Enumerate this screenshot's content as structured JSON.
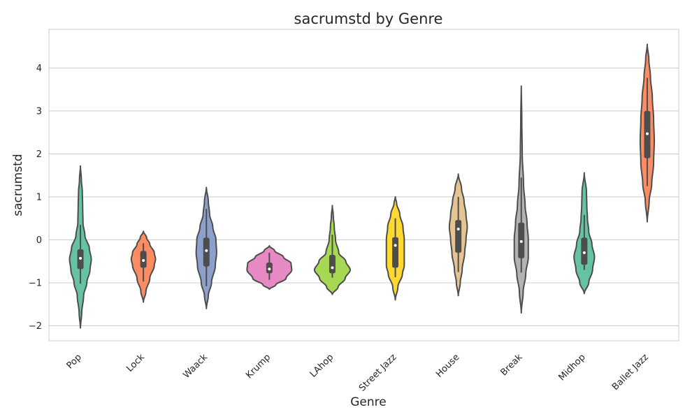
{
  "chart_data": {
    "type": "violin",
    "title": "sacrumstd by Genre",
    "xlabel": "Genre",
    "ylabel": "sacrumstd",
    "ylim": [
      -2.35,
      4.9
    ],
    "yticks": [
      -2,
      -1,
      0,
      1,
      2,
      3,
      4
    ],
    "ytick_labels": [
      "−2",
      "−1",
      "0",
      "1",
      "2",
      "3",
      "4"
    ],
    "grid": true,
    "categories": [
      "Pop",
      "Lock",
      "Waack",
      "Krump",
      "LAhop",
      "Street Jazz",
      "House",
      "Break",
      "Midhop",
      "Ballet Jazz"
    ],
    "colors": [
      "#66c2a5",
      "#fc8d62",
      "#8da0cb",
      "#e78ac3",
      "#a6d854",
      "#ffd92f",
      "#e5c494",
      "#b3b3b3",
      "#66c2a5",
      "#fc8d62"
    ],
    "series": [
      {
        "category": "Pop",
        "min": -2.05,
        "max": 1.72,
        "whisker_low": -1.02,
        "q1": -0.68,
        "median": -0.43,
        "q3": -0.22,
        "whisker_high": 0.35,
        "profile": [
          [
            -2.05,
            0
          ],
          [
            -1.7,
            0.02
          ],
          [
            -1.3,
            0.05
          ],
          [
            -1.0,
            0.1
          ],
          [
            -0.7,
            0.15
          ],
          [
            -0.45,
            0.17
          ],
          [
            -0.2,
            0.14
          ],
          [
            0.1,
            0.07
          ],
          [
            0.4,
            0.04
          ],
          [
            0.8,
            0.035
          ],
          [
            1.1,
            0.03
          ],
          [
            1.4,
            0.015
          ],
          [
            1.72,
            0
          ]
        ]
      },
      {
        "category": "Lock",
        "min": -1.45,
        "max": 0.2,
        "whisker_low": -0.97,
        "q1": -0.65,
        "median": -0.48,
        "q3": -0.26,
        "whisker_high": -0.08,
        "profile": [
          [
            -1.45,
            0
          ],
          [
            -1.2,
            0.04
          ],
          [
            -0.9,
            0.1
          ],
          [
            -0.6,
            0.17
          ],
          [
            -0.45,
            0.19
          ],
          [
            -0.3,
            0.17
          ],
          [
            -0.1,
            0.1
          ],
          [
            0.05,
            0.05
          ],
          [
            0.2,
            0
          ]
        ]
      },
      {
        "category": "Waack",
        "min": -1.6,
        "max": 1.22,
        "whisker_low": -1.08,
        "q1": -0.62,
        "median": -0.25,
        "q3": 0.05,
        "whisker_high": 0.72,
        "profile": [
          [
            -1.6,
            0
          ],
          [
            -1.3,
            0.03
          ],
          [
            -1.0,
            0.08
          ],
          [
            -0.6,
            0.14
          ],
          [
            -0.3,
            0.16
          ],
          [
            0.0,
            0.15
          ],
          [
            0.3,
            0.1
          ],
          [
            0.6,
            0.05
          ],
          [
            0.9,
            0.03
          ],
          [
            1.22,
            0
          ]
        ]
      },
      {
        "category": "Krump",
        "min": -1.15,
        "max": -0.14,
        "whisker_low": -0.93,
        "q1": -0.78,
        "median": -0.68,
        "q3": -0.53,
        "whisker_high": -0.3,
        "profile": [
          [
            -1.15,
            0
          ],
          [
            -1.05,
            0.1
          ],
          [
            -0.9,
            0.26
          ],
          [
            -0.7,
            0.35
          ],
          [
            -0.55,
            0.34
          ],
          [
            -0.4,
            0.22
          ],
          [
            -0.25,
            0.08
          ],
          [
            -0.14,
            0
          ]
        ]
      },
      {
        "category": "LAhop",
        "min": -1.27,
        "max": 0.8,
        "whisker_low": -0.88,
        "q1": -0.78,
        "median": -0.65,
        "q3": -0.35,
        "whisker_high": 0.12,
        "profile": [
          [
            -1.27,
            0
          ],
          [
            -1.1,
            0.09
          ],
          [
            -0.9,
            0.2
          ],
          [
            -0.7,
            0.28
          ],
          [
            -0.5,
            0.21
          ],
          [
            -0.3,
            0.1
          ],
          [
            0.0,
            0.05
          ],
          [
            0.3,
            0.03
          ],
          [
            0.55,
            0.015
          ],
          [
            0.8,
            0
          ]
        ]
      },
      {
        "category": "Street Jazz",
        "min": -1.4,
        "max": 1.0,
        "whisker_low": -0.87,
        "q1": -0.65,
        "median": -0.13,
        "q3": 0.06,
        "whisker_high": 0.5,
        "profile": [
          [
            -1.4,
            0
          ],
          [
            -1.1,
            0.04
          ],
          [
            -0.8,
            0.11
          ],
          [
            -0.6,
            0.14
          ],
          [
            -0.3,
            0.14
          ],
          [
            0.0,
            0.14
          ],
          [
            0.3,
            0.12
          ],
          [
            0.6,
            0.07
          ],
          [
            0.85,
            0.02
          ],
          [
            1.0,
            0
          ]
        ]
      },
      {
        "category": "House",
        "min": -1.3,
        "max": 1.53,
        "whisker_low": -0.75,
        "q1": -0.3,
        "median": 0.25,
        "q3": 0.46,
        "whisker_high": 1.0,
        "profile": [
          [
            -1.3,
            0
          ],
          [
            -1.0,
            0.03
          ],
          [
            -0.7,
            0.06
          ],
          [
            -0.3,
            0.1
          ],
          [
            0.0,
            0.12
          ],
          [
            0.3,
            0.14
          ],
          [
            0.6,
            0.12
          ],
          [
            0.9,
            0.09
          ],
          [
            1.2,
            0.05
          ],
          [
            1.53,
            0
          ]
        ]
      },
      {
        "category": "Break",
        "min": -1.7,
        "max": 3.58,
        "whisker_low": -0.76,
        "q1": -0.43,
        "median": -0.04,
        "q3": 0.4,
        "whisker_high": 1.45,
        "profile": [
          [
            -1.7,
            0
          ],
          [
            -1.2,
            0.03
          ],
          [
            -0.8,
            0.07
          ],
          [
            -0.4,
            0.11
          ],
          [
            0.0,
            0.11
          ],
          [
            0.4,
            0.09
          ],
          [
            0.8,
            0.06
          ],
          [
            1.3,
            0.035
          ],
          [
            2.0,
            0.015
          ],
          [
            2.8,
            0.008
          ],
          [
            3.58,
            0
          ]
        ]
      },
      {
        "category": "Midhop",
        "min": -1.25,
        "max": 1.56,
        "whisker_low": -0.7,
        "q1": -0.58,
        "median": -0.3,
        "q3": 0.05,
        "whisker_high": 0.58,
        "profile": [
          [
            -1.25,
            0
          ],
          [
            -1.0,
            0.07
          ],
          [
            -0.7,
            0.13
          ],
          [
            -0.4,
            0.16
          ],
          [
            -0.1,
            0.12
          ],
          [
            0.2,
            0.07
          ],
          [
            0.5,
            0.05
          ],
          [
            0.8,
            0.04
          ],
          [
            1.1,
            0.035
          ],
          [
            1.56,
            0
          ]
        ]
      },
      {
        "category": "Ballet Jazz",
        "min": 0.42,
        "max": 4.55,
        "whisker_low": 1.25,
        "q1": 1.9,
        "median": 2.47,
        "q3": 3.0,
        "whisker_high": 3.77,
        "profile": [
          [
            0.42,
            0
          ],
          [
            0.9,
            0.03
          ],
          [
            1.3,
            0.07
          ],
          [
            1.8,
            0.1
          ],
          [
            2.3,
            0.11
          ],
          [
            2.8,
            0.1
          ],
          [
            3.3,
            0.08
          ],
          [
            3.8,
            0.05
          ],
          [
            4.2,
            0.025
          ],
          [
            4.55,
            0
          ]
        ]
      }
    ]
  }
}
